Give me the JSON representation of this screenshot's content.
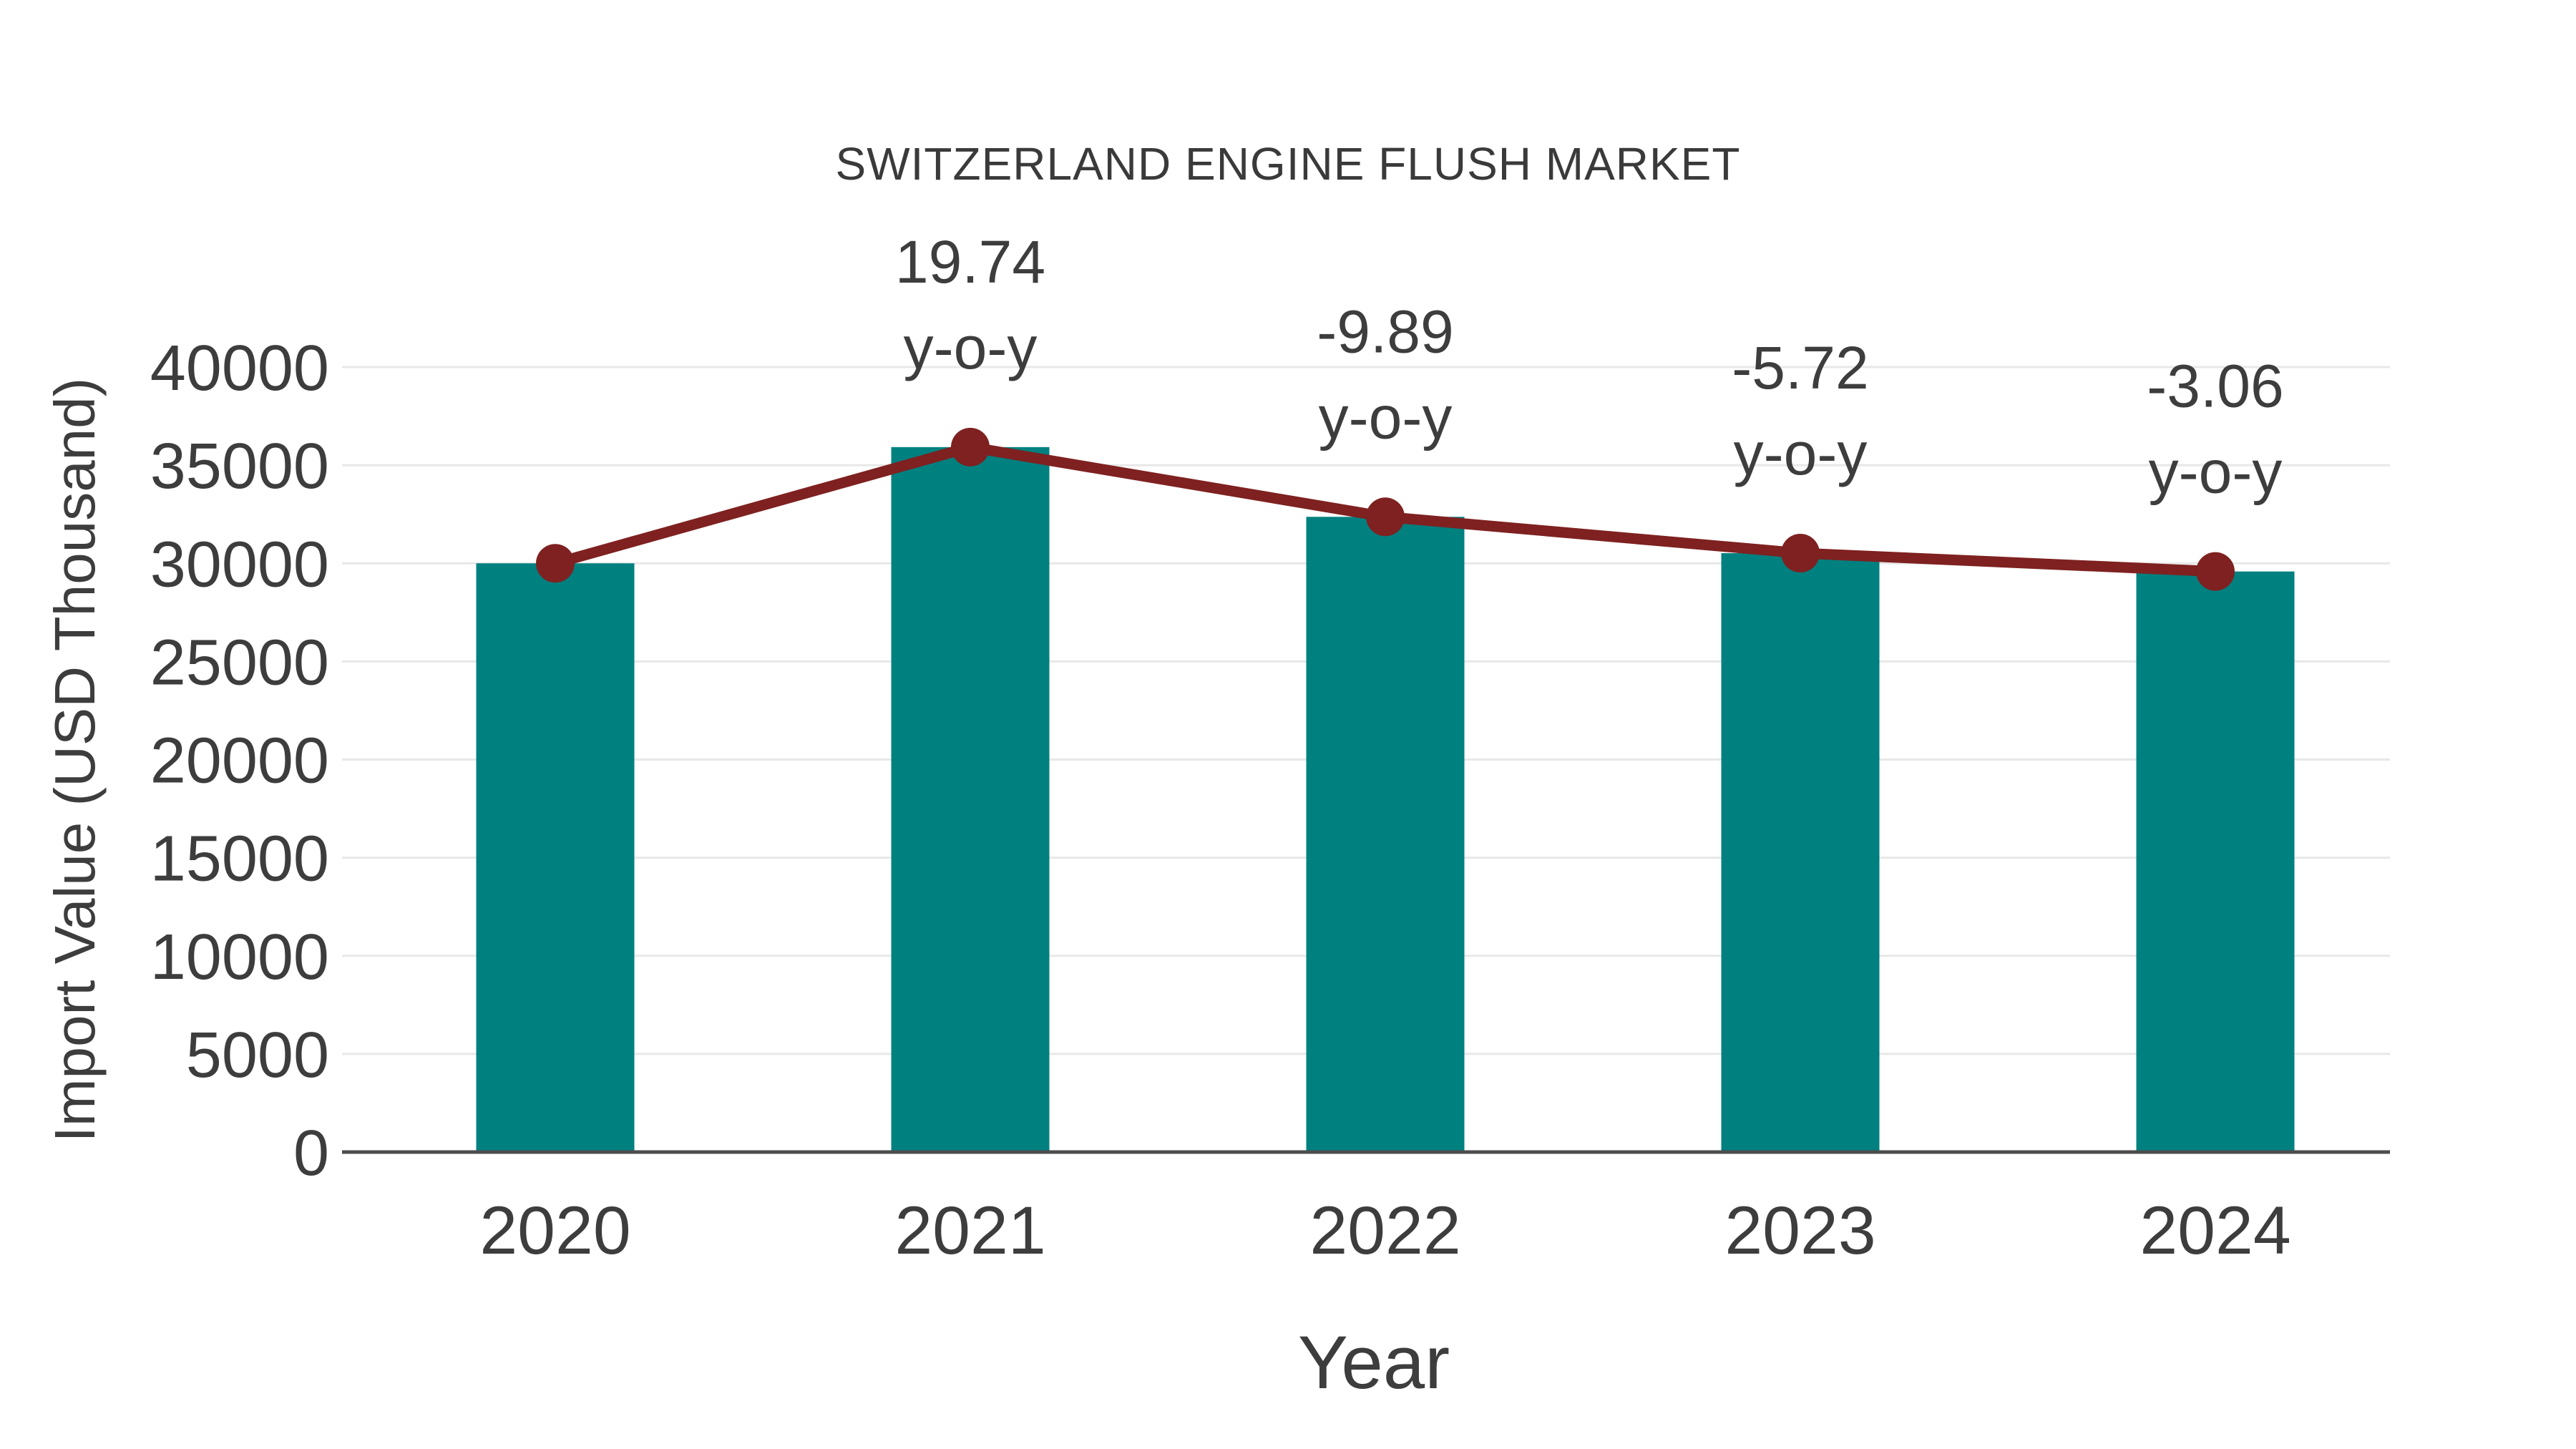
{
  "title": "SWITZERLAND ENGINE FLUSH MARKET",
  "colors": {
    "bar": "#018080",
    "line": "#7e2120",
    "text": "#3d3d3d",
    "grid": "#e8e8e8",
    "axis": "#4d4d4d",
    "background": "#ffffff"
  },
  "chart_data": {
    "type": "bar",
    "title": "SWITZERLAND ENGINE FLUSH MARKET",
    "xlabel": "Year",
    "ylabel": "Import Value (USD Thousand)",
    "categories": [
      "2020",
      "2021",
      "2022",
      "2023",
      "2024"
    ],
    "series": [
      {
        "name": "Import Value (USD Thousand)",
        "type": "bar",
        "color": "#018080",
        "values": [
          30000,
          35922,
          32369,
          30518,
          29584
        ]
      },
      {
        "name": "Import Value trend",
        "type": "line",
        "color": "#7e2120",
        "values": [
          30000,
          35922,
          32369,
          30518,
          29584
        ]
      }
    ],
    "annotations": [
      {
        "category": "2021",
        "value_label": "19.74",
        "suffix": "y-o-y"
      },
      {
        "category": "2022",
        "value_label": "-9.89",
        "suffix": "y-o-y"
      },
      {
        "category": "2023",
        "value_label": "-5.72",
        "suffix": "y-o-y"
      },
      {
        "category": "2024",
        "value_label": "-3.06",
        "suffix": "y-o-y"
      }
    ],
    "ylim": [
      0,
      43000
    ],
    "yticks": [
      0,
      5000,
      10000,
      15000,
      20000,
      25000,
      30000,
      35000,
      40000
    ],
    "grid": true,
    "legend": "none"
  }
}
